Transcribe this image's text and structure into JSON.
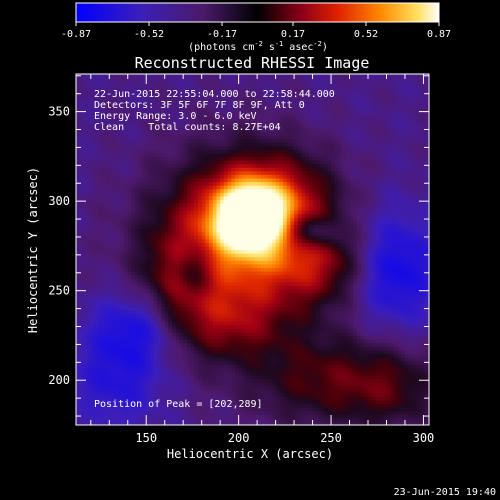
{
  "colorbar": {
    "ticks": [
      {
        "value": -0.87,
        "label": "-0.87"
      },
      {
        "value": -0.52,
        "label": "-0.52"
      },
      {
        "value": -0.17,
        "label": "-0.17"
      },
      {
        "value": 0.17,
        "label": "0.17"
      },
      {
        "value": 0.52,
        "label": "0.52"
      },
      {
        "value": 0.87,
        "label": "0.87"
      }
    ],
    "units_base": "(photons cm",
    "units_exp1": "-2",
    "units_mid": " s",
    "units_exp2": "-1",
    "units_mid2": " asec",
    "units_exp3": "-2",
    "units_tail": ")"
  },
  "title": "Reconstructed RHESSI Image",
  "annotations": {
    "line1": "22-Jun-2015 22:55:04.000 to 22:58:44.000",
    "line2": "Detectors: 3F 5F 6F 7F 8F 9F, Att 0",
    "line3": "Energy Range: 3.0 - 6.0 keV",
    "line4": "Clean    Total counts: 8.27E+04",
    "peak": "Position of Peak = [202,289]"
  },
  "axes": {
    "xlabel": "Heliocentric X (arcsec)",
    "ylabel": "Heliocentric Y (arcsec)",
    "xrange": [
      112,
      303
    ],
    "yrange": [
      175,
      371
    ],
    "xticks": [
      150,
      200,
      250,
      300
    ],
    "yticks": [
      200,
      250,
      300,
      350
    ]
  },
  "footer": {
    "timestamp": "23-Jun-2015 19:40"
  },
  "image": {
    "peak_x": 202,
    "peak_y": 289
  }
}
